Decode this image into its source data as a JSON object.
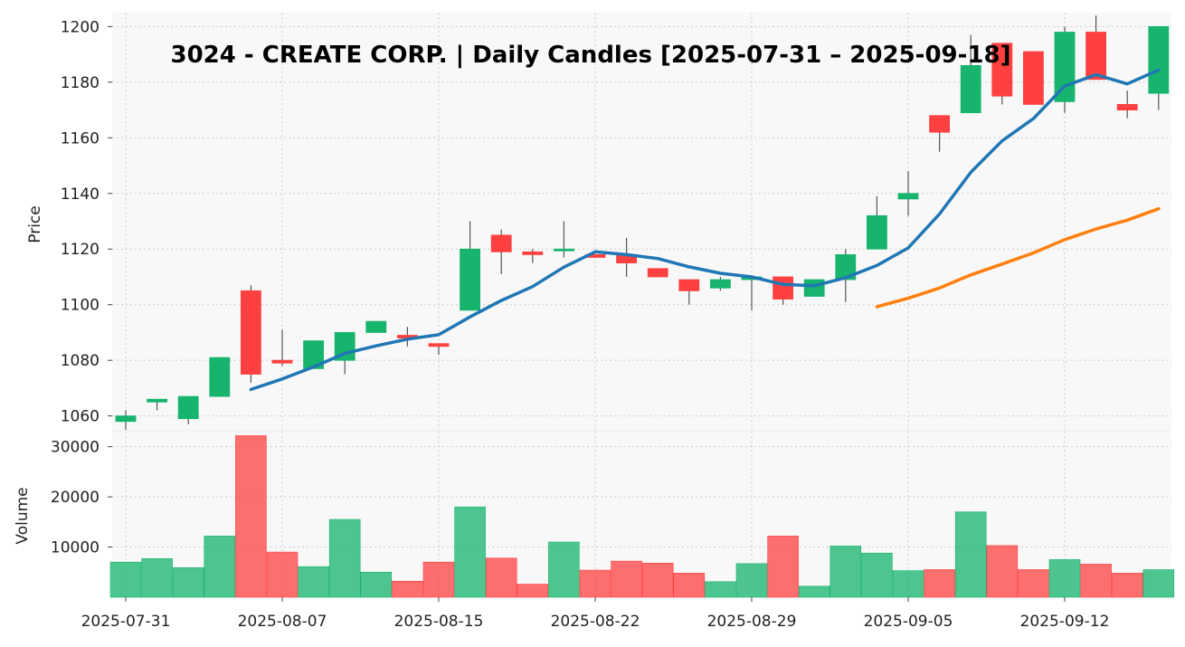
{
  "chart_data": {
    "type": "candlestick",
    "title": "3024 - CREATE CORP. | Daily Candles [2025-07-31 – 2025-09-18]",
    "ylabel_price": "Price",
    "ylabel_volume": "Volume",
    "colors": {
      "up": "#16b46c",
      "down": "#ff4040",
      "ma_short": "#1f77b4",
      "ma_long": "#ff7f0e",
      "panel_bg": "#f8f8f8",
      "grid": "#cccccc"
    },
    "price_ylim": [
      1055,
      1205
    ],
    "price_yticks": [
      1060,
      1080,
      1100,
      1120,
      1140,
      1160,
      1180,
      1200
    ],
    "volume_ylim": [
      0,
      33000
    ],
    "volume_yticks": [
      10000,
      20000,
      30000
    ],
    "x_tick_labels": [
      {
        "label": "2025-07-31",
        "index": 0
      },
      {
        "label": "2025-08-07",
        "index": 5
      },
      {
        "label": "2025-08-15",
        "index": 10
      },
      {
        "label": "2025-08-22",
        "index": 15
      },
      {
        "label": "2025-08-29",
        "index": 20
      },
      {
        "label": "2025-09-05",
        "index": 25
      },
      {
        "label": "2025-09-12",
        "index": 30
      }
    ],
    "candles": [
      {
        "o": 1058,
        "h": 1062,
        "l": 1055,
        "c": 1060,
        "v": 7000
      },
      {
        "o": 1065,
        "h": 1066,
        "l": 1062,
        "c": 1066,
        "v": 7700
      },
      {
        "o": 1059,
        "h": 1067,
        "l": 1057,
        "c": 1067,
        "v": 5900
      },
      {
        "o": 1067,
        "h": 1081,
        "l": 1067,
        "c": 1081,
        "v": 12200
      },
      {
        "o": 1105,
        "h": 1107,
        "l": 1072,
        "c": 1075,
        "v": 32200
      },
      {
        "o": 1080,
        "h": 1091,
        "l": 1078,
        "c": 1079,
        "v": 9000
      },
      {
        "o": 1077,
        "h": 1087,
        "l": 1077,
        "c": 1087,
        "v": 6100
      },
      {
        "o": 1080,
        "h": 1090,
        "l": 1075,
        "c": 1090,
        "v": 15500
      },
      {
        "o": 1090,
        "h": 1094,
        "l": 1090,
        "c": 1094,
        "v": 5000
      },
      {
        "o": 1089,
        "h": 1092,
        "l": 1085,
        "c": 1088,
        "v": 3200
      },
      {
        "o": 1086,
        "h": 1086,
        "l": 1082,
        "c": 1085,
        "v": 7000
      },
      {
        "o": 1098,
        "h": 1130,
        "l": 1098,
        "c": 1120,
        "v": 18000
      },
      {
        "o": 1125,
        "h": 1127,
        "l": 1111,
        "c": 1119,
        "v": 7800
      },
      {
        "o": 1119,
        "h": 1120,
        "l": 1115,
        "c": 1118,
        "v": 2600
      },
      {
        "o": 1120,
        "h": 1130,
        "l": 1117,
        "c": 1120,
        "v": 11000
      },
      {
        "o": 1118,
        "h": 1118,
        "l": 1117,
        "c": 1117,
        "v": 5400
      },
      {
        "o": 1118,
        "h": 1124,
        "l": 1110,
        "c": 1115,
        "v": 7200
      },
      {
        "o": 1113,
        "h": 1113,
        "l": 1110,
        "c": 1110,
        "v": 6800
      },
      {
        "o": 1109,
        "h": 1109,
        "l": 1100,
        "c": 1105,
        "v": 4800
      },
      {
        "o": 1106,
        "h": 1110,
        "l": 1105,
        "c": 1109,
        "v": 3100
      },
      {
        "o": 1109,
        "h": 1110,
        "l": 1098,
        "c": 1110,
        "v": 6700
      },
      {
        "o": 1110,
        "h": 1110,
        "l": 1100,
        "c": 1102,
        "v": 12200
      },
      {
        "o": 1103,
        "h": 1109,
        "l": 1103,
        "c": 1109,
        "v": 2200
      },
      {
        "o": 1109,
        "h": 1120,
        "l": 1101,
        "c": 1118,
        "v": 10200
      },
      {
        "o": 1120,
        "h": 1139,
        "l": 1120,
        "c": 1132,
        "v": 8800
      },
      {
        "o": 1138,
        "h": 1148,
        "l": 1132,
        "c": 1140,
        "v": 5300
      },
      {
        "o": 1168,
        "h": 1168,
        "l": 1155,
        "c": 1162,
        "v": 5500
      },
      {
        "o": 1169,
        "h": 1197,
        "l": 1169,
        "c": 1186,
        "v": 17000
      },
      {
        "o": 1194,
        "h": 1194,
        "l": 1172,
        "c": 1175,
        "v": 10300
      },
      {
        "o": 1191,
        "h": 1191,
        "l": 1172,
        "c": 1172,
        "v": 5500
      },
      {
        "o": 1173,
        "h": 1200,
        "l": 1169,
        "c": 1198,
        "v": 7500
      },
      {
        "o": 1198,
        "h": 1204,
        "l": 1181,
        "c": 1181,
        "v": 6600
      },
      {
        "o": 1172,
        "h": 1177,
        "l": 1167,
        "c": 1170,
        "v": 4800
      },
      {
        "o": 1176,
        "h": 1200,
        "l": 1170,
        "c": 1200,
        "v": 5500
      }
    ],
    "ma_short": [
      null,
      null,
      null,
      null,
      1069.5,
      1073.3,
      1077.6,
      1082.5,
      1085.2,
      1087.6,
      1089.2,
      1095.6,
      1101.5,
      1106.5,
      1113.5,
      1119.0,
      1118.0,
      1116.6,
      1113.6,
      1111.3,
      1110.0,
      1107.3,
      1106.8,
      1109.7,
      1114.1,
      1120.4,
      1132.6,
      1147.6,
      1158.9,
      1166.9,
      1178.6,
      1182.7,
      1179.4,
      1184.4
    ],
    "ma_long": [
      null,
      null,
      null,
      null,
      null,
      null,
      null,
      null,
      null,
      null,
      null,
      null,
      null,
      null,
      null,
      null,
      null,
      null,
      null,
      null,
      null,
      null,
      null,
      null,
      1099.3,
      1102.3,
      1106.0,
      1110.7,
      1114.6,
      1118.6,
      1123.4,
      1127.2,
      1130.4,
      1134.5
    ]
  }
}
